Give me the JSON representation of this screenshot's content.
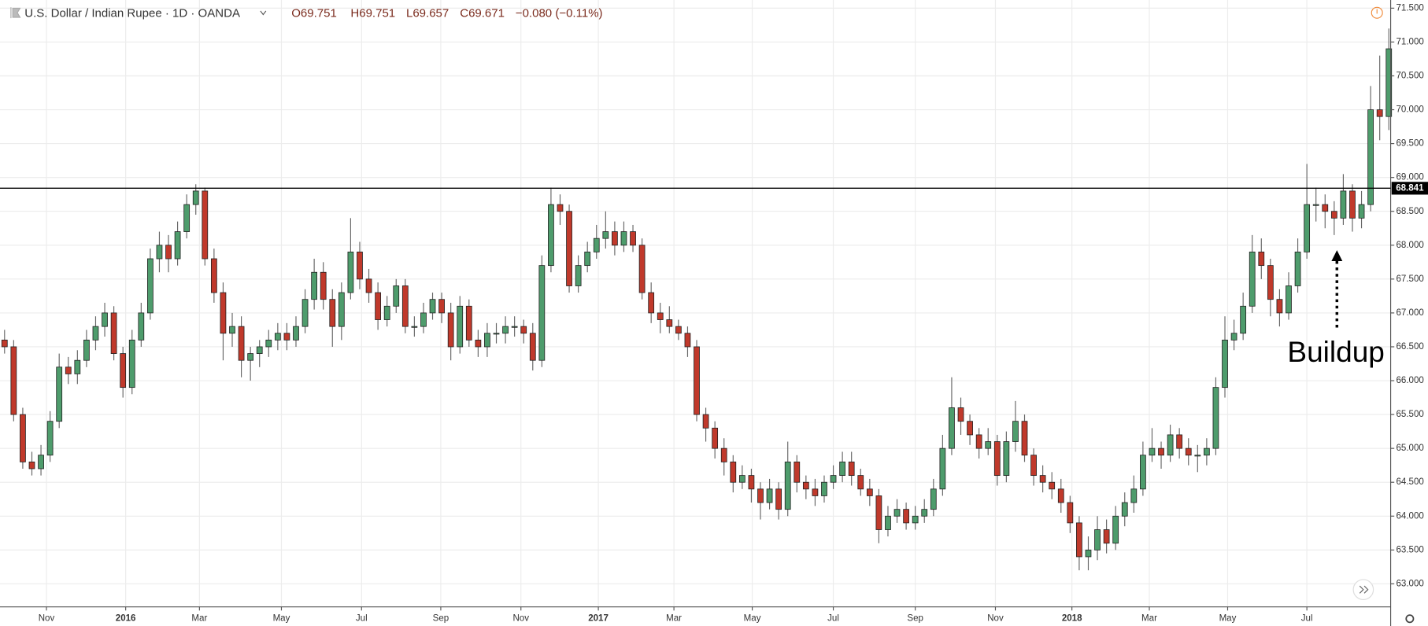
{
  "header": {
    "title": "U.S. Dollar / Indian Rupee · 1D · OANDA",
    "open": "O69.751",
    "high": "H69.751",
    "low": "L69.657",
    "close": "C69.671",
    "change": "−0.080 (−0.11%)"
  },
  "chart_data": {
    "type": "candlestick",
    "up_color": "#4e9c6c",
    "down_color": "#c0392b",
    "grid": true,
    "categories": [
      null,
      null,
      null,
      null,
      null,
      null,
      null,
      null,
      null,
      null,
      null,
      null,
      null,
      null,
      null,
      null,
      null,
      null,
      null,
      null,
      null,
      null,
      null,
      null,
      null,
      null,
      null,
      null,
      null,
      null,
      null,
      null,
      null,
      null,
      null,
      null,
      null,
      null,
      null,
      null,
      null,
      null,
      null,
      null,
      null,
      null,
      null,
      null,
      null,
      null,
      null,
      null,
      null,
      null,
      null,
      null,
      null,
      null,
      null,
      null,
      null,
      null,
      null,
      null,
      null,
      null,
      null,
      null,
      null,
      null,
      null,
      null,
      null,
      null,
      null,
      null,
      null,
      null,
      null,
      null,
      null,
      null,
      null,
      null,
      null,
      null,
      null,
      null,
      null,
      null,
      null,
      null,
      null,
      null,
      null,
      null,
      null,
      null,
      null,
      null,
      null,
      null,
      null,
      null,
      null,
      null,
      null,
      null,
      null,
      null,
      null,
      null,
      null,
      null,
      null,
      null,
      null,
      null,
      null,
      null,
      null,
      null,
      null,
      null,
      null,
      null,
      null,
      null,
      null,
      null,
      null,
      null,
      null,
      null,
      null,
      null,
      null,
      null,
      null,
      null,
      null,
      null,
      null,
      null,
      null,
      null,
      null,
      null,
      null,
      null,
      null,
      null,
      null
    ],
    "open": [
      66.6,
      66.5,
      65.5,
      64.8,
      64.7,
      64.9,
      65.4,
      66.2,
      66.1,
      66.3,
      66.6,
      66.8,
      67.0,
      66.4,
      65.9,
      66.6,
      67.0,
      67.8,
      68.0,
      67.8,
      68.2,
      68.6,
      68.8,
      67.8,
      67.3,
      66.7,
      66.8,
      66.3,
      66.4,
      66.5,
      66.6,
      66.7,
      66.6,
      66.8,
      67.2,
      67.6,
      67.2,
      66.8,
      67.3,
      67.9,
      67.5,
      67.3,
      66.9,
      67.1,
      67.4,
      66.8,
      66.8,
      67.0,
      67.2,
      67.0,
      66.5,
      67.1,
      66.6,
      66.5,
      66.7,
      66.7,
      66.8,
      66.8,
      66.7,
      66.3,
      67.7,
      68.6,
      68.5,
      67.4,
      67.7,
      67.9,
      68.1,
      68.2,
      68.0,
      68.2,
      68.0,
      67.3,
      67.0,
      66.9,
      66.8,
      66.7,
      66.5,
      65.5,
      65.3,
      65.0,
      64.8,
      64.5,
      64.6,
      64.4,
      64.2,
      64.4,
      64.1,
      64.8,
      64.5,
      64.4,
      64.3,
      64.5,
      64.6,
      64.8,
      64.6,
      64.4,
      64.3,
      63.8,
      64.0,
      64.1,
      63.9,
      64.0,
      64.1,
      64.4,
      65.0,
      65.6,
      65.4,
      65.2,
      65.0,
      65.1,
      64.6,
      65.1,
      65.4,
      64.9,
      64.6,
      64.5,
      64.4,
      64.2,
      63.9,
      63.4,
      63.5,
      63.8,
      63.6,
      64.0,
      64.2,
      64.4,
      64.9,
      65.0,
      64.9,
      65.2,
      65.0,
      64.9,
      64.9,
      65.0,
      65.9,
      66.6,
      66.7,
      67.1,
      67.9,
      67.7,
      67.2,
      67.0,
      67.4,
      67.9,
      68.6,
      68.6,
      68.5,
      68.4,
      68.8,
      68.4,
      68.6,
      70.0,
      69.9
    ],
    "high": [
      66.75,
      66.6,
      65.6,
      64.95,
      65.05,
      65.55,
      66.4,
      66.35,
      66.45,
      66.75,
      66.95,
      67.15,
      67.1,
      66.5,
      66.75,
      67.15,
      67.95,
      68.2,
      68.15,
      68.35,
      68.75,
      68.9,
      68.85,
      67.95,
      67.45,
      67.0,
      66.95,
      66.5,
      66.6,
      66.75,
      66.85,
      66.85,
      66.95,
      67.35,
      67.8,
      67.75,
      67.35,
      67.45,
      68.4,
      68.05,
      67.65,
      67.45,
      67.25,
      67.5,
      67.5,
      66.95,
      67.15,
      67.3,
      67.3,
      67.15,
      67.25,
      67.2,
      66.75,
      66.85,
      66.85,
      66.95,
      66.95,
      66.9,
      66.85,
      67.85,
      68.85,
      68.75,
      68.6,
      67.85,
      68.05,
      68.3,
      68.5,
      68.35,
      68.35,
      68.3,
      68.1,
      67.45,
      67.15,
      67.1,
      66.9,
      66.8,
      66.6,
      65.6,
      65.4,
      65.15,
      64.9,
      64.75,
      64.7,
      64.5,
      64.55,
      64.5,
      65.1,
      64.9,
      64.6,
      64.55,
      64.6,
      64.75,
      64.95,
      64.95,
      64.7,
      64.55,
      64.4,
      64.15,
      64.25,
      64.2,
      64.15,
      64.25,
      64.55,
      65.2,
      66.05,
      65.75,
      65.5,
      65.3,
      65.3,
      65.2,
      65.25,
      65.7,
      65.5,
      65.0,
      64.75,
      64.65,
      64.55,
      64.3,
      64.0,
      63.7,
      64.0,
      63.95,
      64.15,
      64.35,
      64.6,
      65.1,
      65.3,
      65.1,
      65.35,
      65.3,
      65.15,
      65.05,
      65.15,
      66.05,
      66.95,
      66.9,
      67.3,
      68.15,
      68.1,
      67.8,
      67.35,
      67.6,
      68.1,
      69.2,
      68.85,
      68.75,
      68.65,
      69.05,
      68.9,
      68.8,
      70.35,
      70.8,
      71.2
    ],
    "low": [
      66.4,
      65.4,
      64.7,
      64.6,
      64.6,
      64.8,
      65.3,
      65.95,
      65.95,
      66.2,
      66.45,
      66.65,
      66.3,
      65.75,
      65.8,
      66.5,
      66.9,
      67.6,
      67.6,
      67.7,
      68.1,
      68.45,
      67.7,
      67.15,
      66.3,
      66.5,
      66.05,
      66.0,
      66.2,
      66.35,
      66.45,
      66.45,
      66.5,
      66.7,
      67.05,
      67.05,
      66.5,
      66.6,
      67.2,
      67.35,
      67.15,
      66.75,
      66.8,
      67.0,
      66.7,
      66.65,
      66.7,
      66.9,
      66.85,
      66.3,
      66.4,
      66.5,
      66.35,
      66.35,
      66.55,
      66.55,
      66.65,
      66.55,
      66.15,
      66.2,
      67.6,
      68.3,
      67.3,
      67.3,
      67.6,
      67.8,
      67.95,
      67.85,
      67.9,
      67.9,
      67.2,
      66.85,
      66.7,
      66.7,
      66.6,
      66.35,
      65.4,
      65.1,
      64.85,
      64.6,
      64.35,
      64.4,
      64.2,
      63.95,
      64.1,
      63.95,
      64.0,
      64.35,
      64.25,
      64.15,
      64.2,
      64.4,
      64.5,
      64.45,
      64.3,
      64.15,
      63.6,
      63.7,
      63.9,
      63.8,
      63.8,
      63.9,
      64.0,
      64.3,
      64.9,
      65.2,
      65.05,
      64.85,
      64.9,
      64.45,
      64.5,
      64.95,
      64.8,
      64.45,
      64.35,
      64.25,
      64.05,
      63.75,
      63.2,
      63.2,
      63.35,
      63.45,
      63.5,
      63.85,
      64.05,
      64.3,
      64.8,
      64.7,
      64.8,
      64.85,
      64.75,
      64.65,
      64.75,
      64.9,
      65.75,
      66.45,
      66.6,
      67.0,
      67.5,
      66.95,
      66.8,
      66.9,
      67.3,
      67.8,
      68.35,
      68.25,
      68.15,
      68.3,
      68.2,
      68.25,
      68.5,
      69.55,
      69.7
    ],
    "close": [
      66.5,
      65.5,
      64.8,
      64.7,
      64.9,
      65.4,
      66.2,
      66.1,
      66.3,
      66.6,
      66.8,
      67.0,
      66.4,
      65.9,
      66.6,
      67.0,
      67.8,
      68.0,
      67.8,
      68.2,
      68.6,
      68.8,
      67.8,
      67.3,
      66.7,
      66.8,
      66.3,
      66.4,
      66.5,
      66.6,
      66.7,
      66.6,
      66.8,
      67.2,
      67.6,
      67.2,
      66.8,
      67.3,
      67.9,
      67.5,
      67.3,
      66.9,
      67.1,
      67.4,
      66.8,
      66.8,
      67.0,
      67.2,
      67.0,
      66.5,
      67.1,
      66.6,
      66.5,
      66.7,
      66.7,
      66.8,
      66.8,
      66.7,
      66.3,
      67.7,
      68.6,
      68.5,
      67.4,
      67.7,
      67.9,
      68.1,
      68.2,
      68.0,
      68.2,
      68.0,
      67.3,
      67.0,
      66.9,
      66.8,
      66.7,
      66.5,
      65.5,
      65.3,
      65.0,
      64.8,
      64.5,
      64.6,
      64.4,
      64.2,
      64.4,
      64.1,
      64.8,
      64.5,
      64.4,
      64.3,
      64.5,
      64.6,
      64.8,
      64.6,
      64.4,
      64.3,
      63.8,
      64.0,
      64.1,
      63.9,
      64.0,
      64.1,
      64.4,
      65.0,
      65.6,
      65.4,
      65.2,
      65.0,
      65.1,
      64.6,
      65.1,
      65.4,
      64.9,
      64.6,
      64.5,
      64.4,
      64.2,
      63.9,
      63.4,
      63.5,
      63.8,
      63.6,
      64.0,
      64.2,
      64.4,
      64.9,
      65.0,
      64.9,
      65.2,
      65.0,
      64.9,
      64.9,
      65.0,
      65.9,
      66.6,
      66.7,
      67.1,
      67.9,
      67.7,
      67.2,
      67.0,
      67.4,
      67.9,
      68.6,
      68.6,
      68.5,
      68.4,
      68.8,
      68.4,
      68.6,
      70.0,
      69.9,
      70.9
    ],
    "xlim": [
      -0.5,
      152.2
    ],
    "xticks": [
      {
        "value": 4.6,
        "label": "Nov"
      },
      {
        "value": 13.3,
        "label": "2016"
      },
      {
        "value": 21.4,
        "label": "Mar"
      },
      {
        "value": 30.4,
        "label": "May"
      },
      {
        "value": 39.2,
        "label": "Jul"
      },
      {
        "value": 47.9,
        "label": "Sep"
      },
      {
        "value": 56.7,
        "label": "Nov"
      },
      {
        "value": 65.2,
        "label": "2017"
      },
      {
        "value": 73.5,
        "label": "Mar"
      },
      {
        "value": 82.1,
        "label": "May"
      },
      {
        "value": 91,
        "label": "Jul"
      },
      {
        "value": 100,
        "label": "Sep"
      },
      {
        "value": 108.8,
        "label": "Nov"
      },
      {
        "value": 117.2,
        "label": "2018"
      },
      {
        "value": 125.7,
        "label": "Mar"
      },
      {
        "value": 134.3,
        "label": "May"
      },
      {
        "value": 143,
        "label": "Jul"
      }
    ],
    "ylim": [
      62.66,
      71.62
    ],
    "yticks": [
      {
        "value": 63,
        "label": "63.000"
      },
      {
        "value": 63.5,
        "label": "63.500"
      },
      {
        "value": 64,
        "label": "64.000"
      },
      {
        "value": 64.5,
        "label": "64.500"
      },
      {
        "value": 65,
        "label": "65.000"
      },
      {
        "value": 65.5,
        "label": "65.500"
      },
      {
        "value": 66,
        "label": "66.000"
      },
      {
        "value": 66.5,
        "label": "66.500"
      },
      {
        "value": 67,
        "label": "67.000"
      },
      {
        "value": 67.5,
        "label": "67.500"
      },
      {
        "value": 68,
        "label": "68.000"
      },
      {
        "value": 68.5,
        "label": "68.500"
      },
      {
        "value": 69,
        "label": "69.000"
      },
      {
        "value": 69.5,
        "label": "69.500"
      },
      {
        "value": 70,
        "label": "70.000"
      },
      {
        "value": 70.5,
        "label": "70.500"
      },
      {
        "value": 71,
        "label": "71.000"
      },
      {
        "value": 71.5,
        "label": "71.500"
      }
    ],
    "hline": {
      "value": 68.841,
      "label": "68.841"
    },
    "annotation": "Buildup"
  }
}
